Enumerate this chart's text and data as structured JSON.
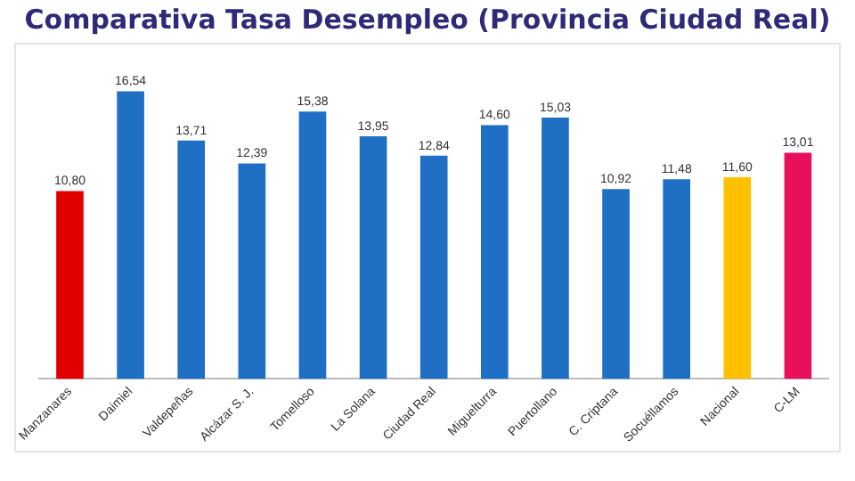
{
  "chart_data": {
    "type": "bar",
    "title": "Comparativa Tasa Desempleo (Provincia Ciudad Real)",
    "categories": [
      "Manzanares",
      "Daimiel",
      "Valdepeñas",
      "Alcázar S. J.",
      "Tomelloso",
      "La Solana",
      "Ciudad Real",
      "Miguelturra",
      "Puertollano",
      "C. Criptana",
      "Socuéllamos",
      "Nacional",
      "C-LM"
    ],
    "values": [
      10.8,
      16.54,
      13.71,
      12.39,
      15.38,
      13.95,
      12.84,
      14.6,
      15.03,
      10.92,
      11.48,
      11.6,
      13.01
    ],
    "value_labels": [
      "10,80",
      "16,54",
      "13,71",
      "12,39",
      "15,38",
      "13,95",
      "12,84",
      "14,60",
      "15,03",
      "10,92",
      "11,48",
      "11,60",
      "13,01"
    ],
    "colors": [
      "#e00000",
      "#1f6fc5",
      "#1f6fc5",
      "#1f6fc5",
      "#1f6fc5",
      "#1f6fc5",
      "#1f6fc5",
      "#1f6fc5",
      "#1f6fc5",
      "#1f6fc5",
      "#1f6fc5",
      "#ffc000",
      "#e8105a"
    ],
    "grid": false,
    "legend": false
  }
}
